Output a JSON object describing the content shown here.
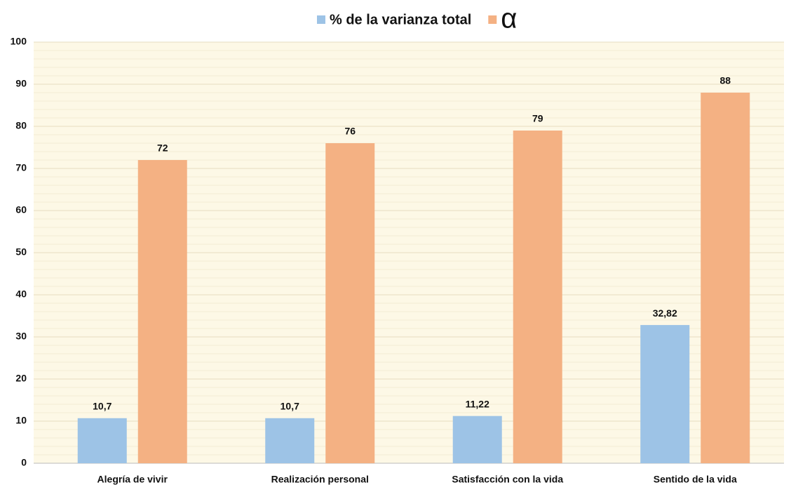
{
  "chart_data": {
    "type": "bar",
    "categories": [
      "Alegría de vivir",
      "Realización personal",
      "Satisfacción con la vida",
      "Sentido de la vida"
    ],
    "series": [
      {
        "name": "% de la varianza total",
        "color": "#9dc3e6",
        "values": [
          10.7,
          10.7,
          11.22,
          32.82
        ],
        "value_labels": [
          "10,7",
          "10,7",
          "11,22",
          "32,82"
        ]
      },
      {
        "name": "α",
        "color": "#f4b183",
        "values": [
          72,
          76,
          79,
          88
        ]
      }
    ],
    "ylim": [
      0,
      100
    ],
    "yticks": [
      0,
      10,
      20,
      30,
      40,
      50,
      60,
      70,
      80,
      90,
      100
    ],
    "grid": true,
    "legend": "top"
  }
}
